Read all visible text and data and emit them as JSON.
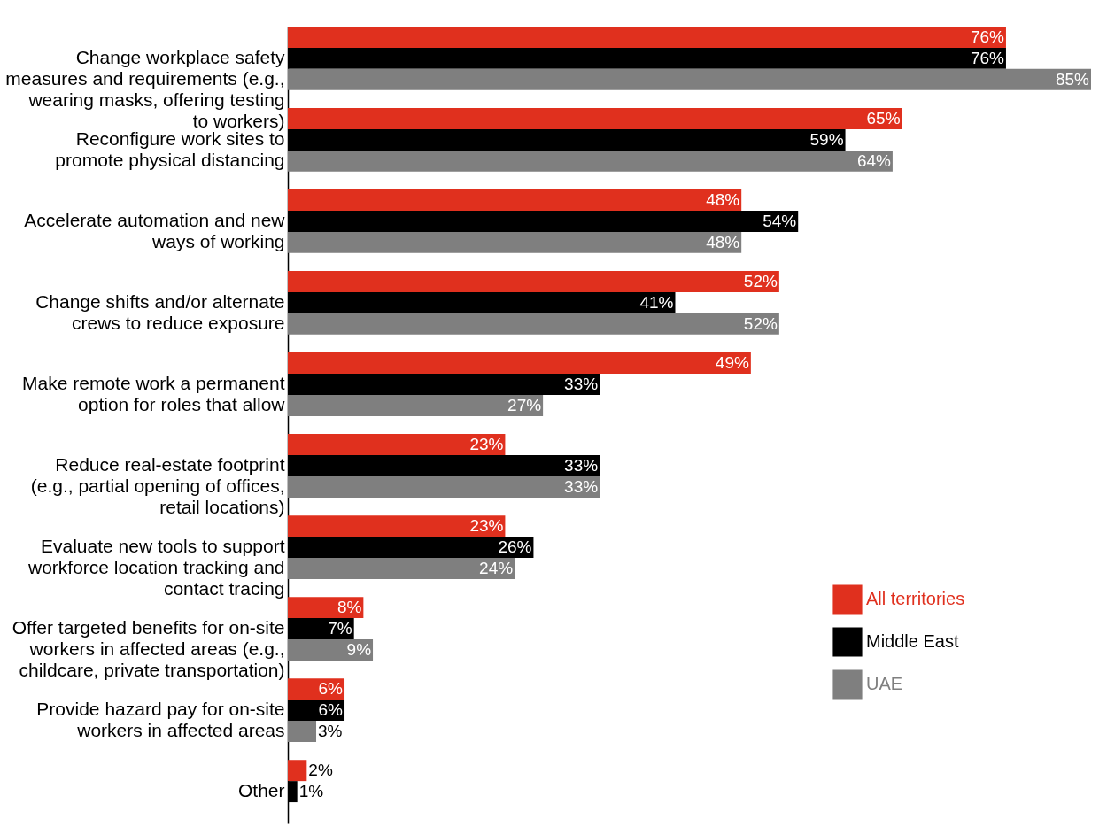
{
  "chart_data": {
    "type": "bar",
    "orientation": "horizontal",
    "legend": "right",
    "categories": [
      "Change workplace safety\nmeasures and requirements (e.g.,\nwearing masks, offering testing\nto workers)",
      "Reconfigure work sites to\npromote physical distancing",
      "Accelerate automation and new\nways of working",
      "Change shifts and/or alternate\ncrews to reduce exposure",
      "Make remote work a permanent\noption for roles that allow",
      "Reduce real-estate footprint\n(e.g.,  partial opening of offices,\nretail locations)",
      "Evaluate new tools to support\nworkforce location tracking and\ncontact tracing",
      "Offer targeted benefits for on-site\nworkers in affected areas (e.g.,\nchildcare, private transportation)",
      "Provide hazard pay for on-site\nworkers in affected areas",
      "Other"
    ],
    "series": [
      {
        "name": "All territories",
        "color": "#e0301e",
        "values": [
          76,
          65,
          48,
          52,
          49,
          23,
          23,
          8,
          6,
          2
        ],
        "value_labels": [
          "76%",
          "65%",
          "48%",
          "52%",
          "49%",
          "23%",
          "23%",
          "8%",
          "6%",
          "2%"
        ]
      },
      {
        "name": "Middle East",
        "color": "#000000",
        "values": [
          76,
          59,
          54,
          41,
          33,
          33,
          26,
          7,
          6,
          1
        ],
        "value_labels": [
          "76%",
          "59%",
          "54%",
          "41%",
          "33%",
          "33%",
          "26%",
          "7%",
          "6%",
          "1%"
        ]
      },
      {
        "name": "UAE",
        "color": "#7f7f7f",
        "values": [
          85,
          64,
          48,
          52,
          27,
          33,
          24,
          9,
          3,
          null
        ],
        "value_labels": [
          "85%",
          "64%",
          "48%",
          "52%",
          "27%",
          "33%",
          "24%",
          "9%",
          "3%",
          null
        ]
      }
    ]
  }
}
